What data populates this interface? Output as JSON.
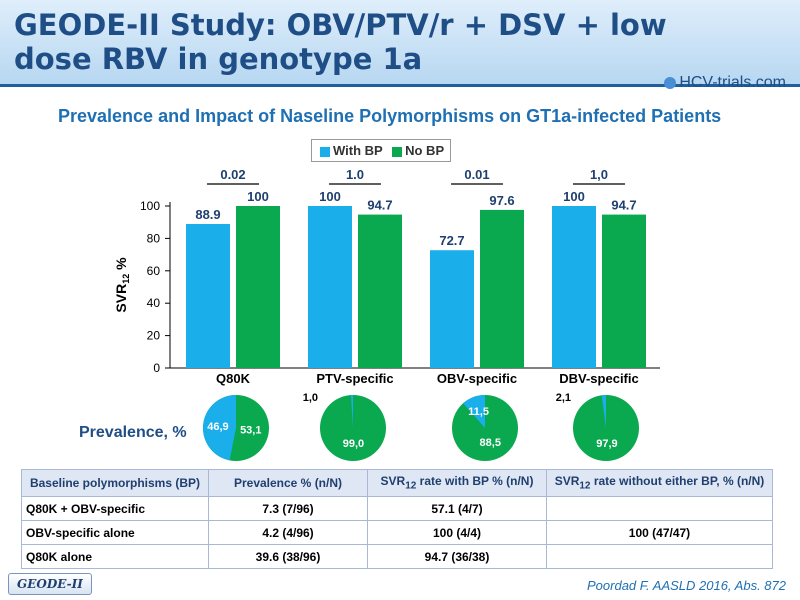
{
  "slide": {
    "title": "GEODE-II Study: OBV/PTV/r + DSV + low dose RBV in genotype 1a",
    "logo": "HCV-trials.com",
    "subtitle": "Prevalence and Impact of Naseline Polymorphisms on GT1a-infected Patients",
    "prevalence_label": "Prevalence, %",
    "badge": "GEODE-II",
    "reference": "Poordad F. AASLD 2016, Abs. 872"
  },
  "legend": {
    "with_bp": "With BP",
    "no_bp": "No BP"
  },
  "colors": {
    "with_bp": "#1aaeea",
    "no_bp": "#0aa84f"
  },
  "chart_data": {
    "type": "bar",
    "categories": [
      "Q80K",
      "PTV-specific",
      "OBV-specific",
      "DBV-specific"
    ],
    "series": [
      {
        "name": "With BP",
        "values": [
          88.9,
          100,
          72.7,
          100
        ],
        "labels": [
          "88.9",
          "100",
          "72.7",
          "100"
        ]
      },
      {
        "name": "No BP",
        "values": [
          100,
          94.7,
          97.6,
          94.7
        ],
        "labels": [
          "100",
          "94.7",
          "97.6",
          "94.7"
        ]
      }
    ],
    "p_values": [
      "0.02",
      "1.0",
      "0.01",
      "1,0"
    ],
    "ylabel_main": "SVR",
    "ylabel_sub": "12",
    "ylabel_suffix": " %",
    "ylim": [
      0,
      100
    ],
    "yticks": [
      "0",
      "20",
      "40",
      "60",
      "80",
      "100"
    ],
    "grid": false
  },
  "prevalence_pies": [
    {
      "with_bp": 46.9,
      "with_label": "46,9",
      "no_label": "53,1"
    },
    {
      "with_bp": 1.0,
      "with_label": "1,0",
      "no_label": "99,0"
    },
    {
      "with_bp": 11.5,
      "with_label": "11,5",
      "no_label": "88,5"
    },
    {
      "with_bp": 2.1,
      "with_label": "2,1",
      "no_label": "97,9"
    }
  ],
  "table": {
    "headers": [
      {
        "main": "Baseline polymorphisms (BP)"
      },
      {
        "main": "Prevalence % (n/N)"
      },
      {
        "main": "SVR",
        "sub": "12",
        "rest": " rate with BP % (n/N)"
      },
      {
        "main": "SVR",
        "sub": "12",
        "rest": " rate without either BP, % (n/N)"
      }
    ],
    "rows": [
      [
        "Q80K + OBV-specific",
        "7.3 (7/96)",
        "57.1 (4/7)",
        ""
      ],
      [
        "OBV-specific alone",
        "4.2 (4/96)",
        "100 (4/4)",
        "100 (47/47)"
      ],
      [
        "Q80K alone",
        "39.6 (38/96)",
        "94.7 (36/38)",
        ""
      ]
    ]
  }
}
